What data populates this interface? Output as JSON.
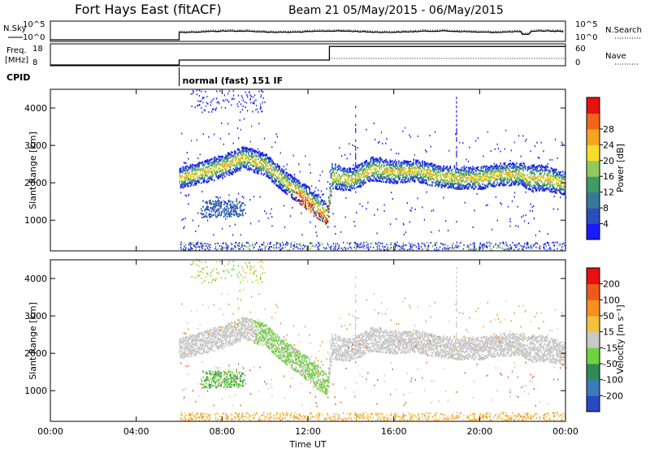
{
  "header": {
    "station": "Fort Hays East (fitACF)",
    "beam_info": "Beam 21 05/May/2015 - 06/May/2015"
  },
  "summary": {
    "nsky_label": "N.Sky",
    "nsearch_label": "N.Search",
    "freq_label_1": "Freq.",
    "freq_label_2": "[MHz]",
    "nave_label": "Nave",
    "cpid_label": "CPID",
    "cpid_value": "normal (fast) 151 IF",
    "noise_ticks": [
      "10^5",
      "10^0"
    ],
    "freq_ticks": [
      "18",
      "8"
    ],
    "nave_ticks": [
      "60",
      "0"
    ]
  },
  "axes": {
    "xlabel": "Time UT",
    "ylabel": "Slant Range [km]",
    "x_ticks": [
      "00:00",
      "04:00",
      "08:00",
      "12:00",
      "16:00",
      "20:00",
      "00:00"
    ],
    "y_ticks": [
      "1000",
      "2000",
      "3000",
      "4000"
    ]
  },
  "power_colorbar": {
    "label": "Power [dB]",
    "ticks": [
      "4",
      "8",
      "12",
      "16",
      "20",
      "24",
      "28"
    ],
    "colors": [
      "#1a1aff",
      "#2b4fb8",
      "#36789a",
      "#3f9a66",
      "#93c95a",
      "#f6dd2a",
      "#f6a521",
      "#f3641b",
      "#e81010"
    ]
  },
  "velocity_colorbar": {
    "label": "Velocity [m s⁻¹]",
    "ticks": [
      "200",
      "100",
      "50",
      "15",
      "-15",
      "-50",
      "-100",
      "-200"
    ],
    "colors": [
      "#2948c4",
      "#3a7bbb",
      "#2e8b57",
      "#6fd23e",
      "#c8c8c8",
      "#f2c23c",
      "#f6901f",
      "#ee5a1b",
      "#e81010"
    ]
  },
  "chart_data": {
    "type": "heatmap",
    "x_range_hours": [
      0,
      24
    ],
    "y_range_km": [
      180,
      4500
    ],
    "cpid_start_hour": 6.0,
    "freq_mhz": [
      {
        "t": 6.0,
        "f": 10.5
      },
      {
        "t": 13.0,
        "f": 17.5
      }
    ],
    "echo_band": [
      {
        "t": 6.0,
        "center": 2150,
        "width": 280
      },
      {
        "t": 7.0,
        "center": 2300,
        "width": 300
      },
      {
        "t": 8.0,
        "center": 2450,
        "width": 320
      },
      {
        "t": 9.0,
        "center": 2700,
        "width": 300
      },
      {
        "t": 10.0,
        "center": 2500,
        "width": 300
      },
      {
        "t": 11.0,
        "center": 2000,
        "width": 300
      },
      {
        "t": 12.0,
        "center": 1600,
        "width": 320
      },
      {
        "t": 12.9,
        "center": 1150,
        "width": 320
      },
      {
        "t": 13.1,
        "center": 2200,
        "width": 350
      },
      {
        "t": 14.0,
        "center": 2100,
        "width": 300
      },
      {
        "t": 15.0,
        "center": 2400,
        "width": 320
      },
      {
        "t": 16.0,
        "center": 2300,
        "width": 300
      },
      {
        "t": 17.0,
        "center": 2350,
        "width": 300
      },
      {
        "t": 18.0,
        "center": 2200,
        "width": 300
      },
      {
        "t": 19.0,
        "center": 2150,
        "width": 300
      },
      {
        "t": 20.0,
        "center": 2150,
        "width": 300
      },
      {
        "t": 21.0,
        "center": 2250,
        "width": 300
      },
      {
        "t": 22.0,
        "center": 2250,
        "width": 300
      },
      {
        "t": 22.2,
        "center": 2150,
        "width": 350
      },
      {
        "t": 23.0,
        "center": 2150,
        "width": 350
      },
      {
        "t": 24.0,
        "center": 2000,
        "width": 300
      }
    ]
  }
}
